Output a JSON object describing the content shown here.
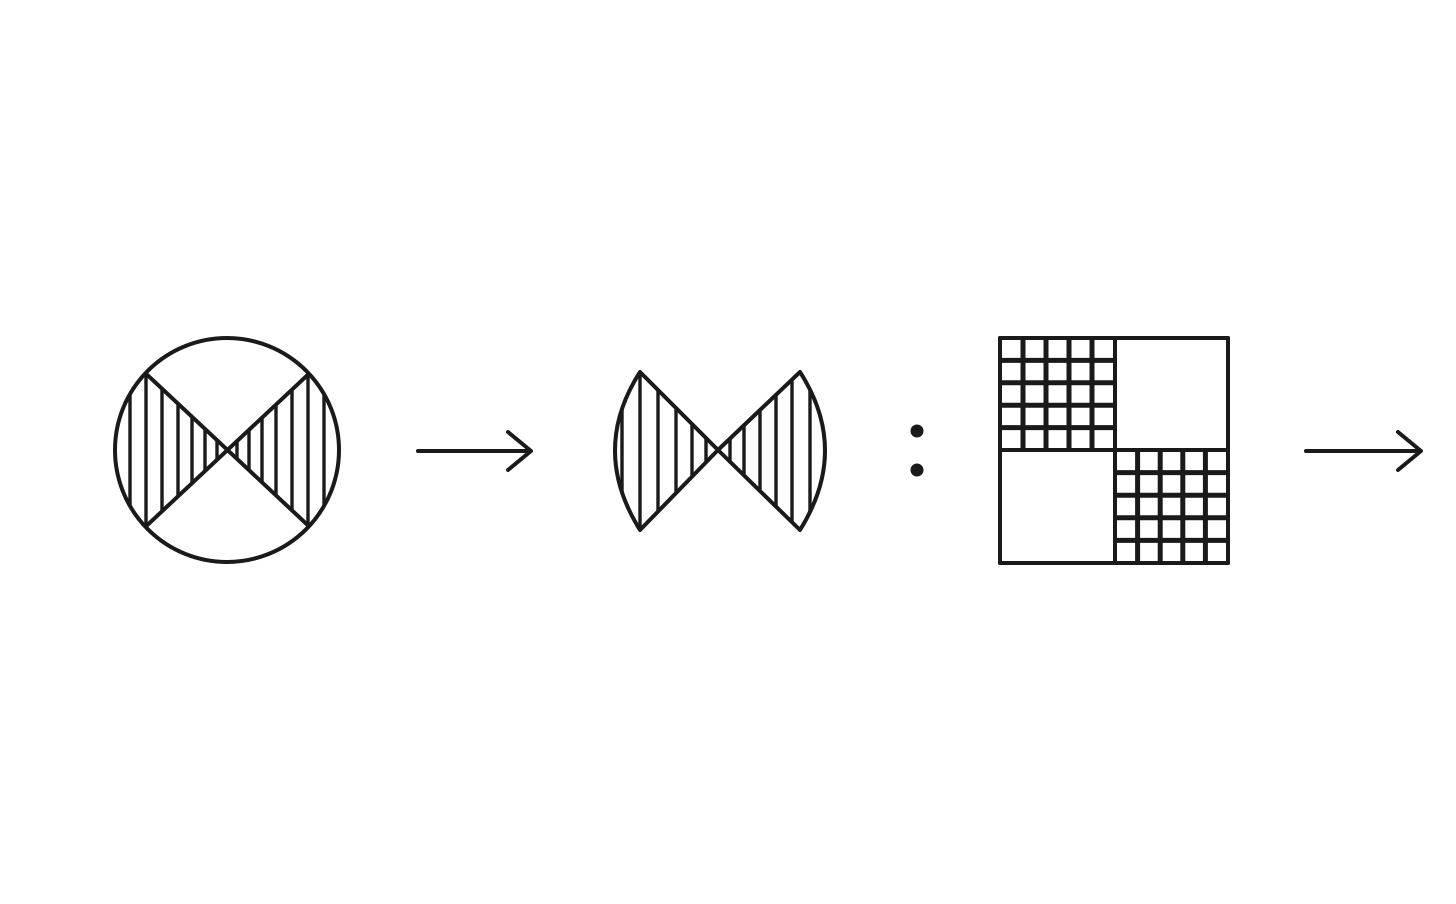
{
  "diagram": {
    "title": "",
    "ink_color": "#1a1a1a",
    "background": "#ffffff",
    "sequence": [
      {
        "id": "panel-1",
        "kind": "hatched-circle-bowtie"
      },
      {
        "id": "arrow-1",
        "kind": "right-arrow"
      },
      {
        "id": "panel-2",
        "kind": "hatched-bowtie"
      },
      {
        "id": "separator",
        "kind": "colon"
      },
      {
        "id": "panel-3",
        "kind": "checker-grid-square",
        "grid_cells_per_quadrant": 5
      },
      {
        "id": "arrow-2",
        "kind": "right-arrow"
      }
    ]
  }
}
